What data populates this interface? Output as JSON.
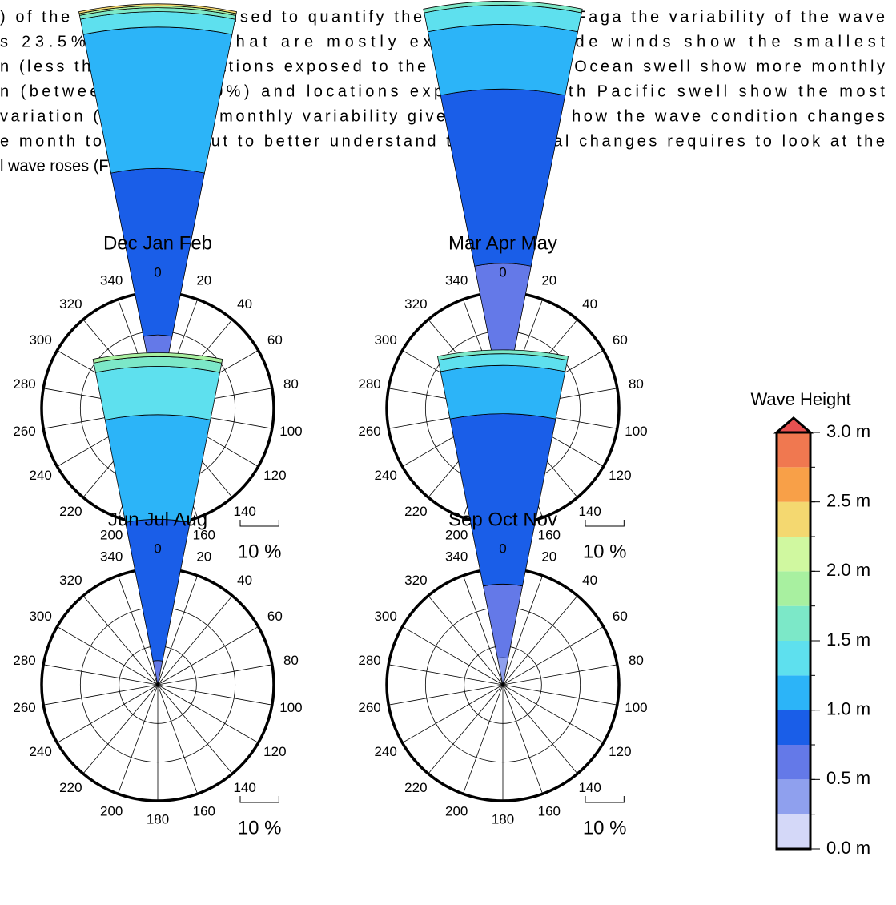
{
  "text_lines": [
    ") of the wave height is used to quantify these changes. In Faga the variability of the wave",
    "s 23.5%. Locations that are mostly exposed to trade winds show the smallest",
    "n (less than 10%), locations exposed to the South Pacific Ocean swell show more monthly",
    "n (between 10 and 20%) and locations exposed to North Pacific swell show the most",
    "variation (>20%). The monthly variability gives an idea of how the wave condition changes",
    "e month to the next but to better understand the seasonal changes requires to look at the",
    "l wave roses (Fig. 5)."
  ],
  "chart_data": [
    {
      "type": "rose",
      "title": "Dec Jan Feb",
      "directions": [
        0,
        20,
        40,
        60,
        80,
        100,
        120,
        140,
        160,
        180,
        200,
        220,
        240,
        260,
        280,
        300,
        320,
        340
      ],
      "rlim": [
        0,
        30
      ],
      "rticks": [
        10,
        20
      ],
      "scale": {
        "value": 10,
        "label": "10 %"
      },
      "direction": 0,
      "segments": [
        {
          "color": "#8fa0ee",
          "value": 5
        },
        {
          "color": "#6479e8",
          "value": 14
        },
        {
          "color": "#1a5ee8",
          "value": 43
        },
        {
          "color": "#2cb4f8",
          "value": 36.5
        },
        {
          "color": "#5ee0ee",
          "value": 4
        },
        {
          "color": "#7ce8c8",
          "value": 1
        },
        {
          "color": "#a8f0a0",
          "value": 0.5
        },
        {
          "color": "#f4d870",
          "value": 0.5
        }
      ]
    },
    {
      "type": "rose",
      "title": "Mar Apr May",
      "directions": [
        0,
        20,
        40,
        60,
        80,
        100,
        120,
        140,
        160,
        180,
        200,
        220,
        240,
        260,
        280,
        300,
        320,
        340
      ],
      "rlim": [
        0,
        30
      ],
      "rticks": [
        10,
        20
      ],
      "scale": {
        "value": 10,
        "label": "10 %"
      },
      "direction": 0,
      "segments": [
        {
          "color": "#6479e8",
          "value": 37.5
        },
        {
          "color": "#1a5ee8",
          "value": 45
        },
        {
          "color": "#2cb4f8",
          "value": 16.7
        },
        {
          "color": "#5ee0ee",
          "value": 5
        },
        {
          "color": "#7ce8c8",
          "value": 1
        }
      ]
    },
    {
      "type": "rose",
      "title": "Jun Jul Aug",
      "directions": [
        0,
        20,
        40,
        60,
        80,
        100,
        120,
        140,
        160,
        180,
        200,
        220,
        240,
        260,
        280,
        300,
        320,
        340
      ],
      "rlim": [
        0,
        30
      ],
      "rticks": [
        10,
        20
      ],
      "scale": {
        "value": 10,
        "label": "10 %"
      },
      "direction": 0,
      "segments": [
        {
          "color": "#6479e8",
          "value": 6.25
        },
        {
          "color": "#1a5ee8",
          "value": 36.5
        },
        {
          "color": "#2cb4f8",
          "value": 27
        },
        {
          "color": "#5ee0ee",
          "value": 12.5
        },
        {
          "color": "#7ce8c8",
          "value": 2.5
        },
        {
          "color": "#a8f0a0",
          "value": 1
        }
      ]
    },
    {
      "type": "rose",
      "title": "Sep Oct Nov",
      "directions": [
        0,
        20,
        40,
        60,
        80,
        100,
        120,
        140,
        160,
        180,
        200,
        220,
        240,
        260,
        280,
        300,
        320,
        340
      ],
      "rlim": [
        0,
        30
      ],
      "rticks": [
        10,
        20
      ],
      "scale": {
        "value": 10,
        "label": "10 %"
      },
      "direction": 0,
      "segments": [
        {
          "color": "#8fa0ee",
          "value": 7
        },
        {
          "color": "#6479e8",
          "value": 19
        },
        {
          "color": "#1a5ee8",
          "value": 44
        },
        {
          "color": "#2cb4f8",
          "value": 12.5
        },
        {
          "color": "#5ee0ee",
          "value": 3
        },
        {
          "color": "#7ce8c8",
          "value": 1
        }
      ]
    },
    {
      "type": "colorbar",
      "title": "Wave Height",
      "bounds": [
        0,
        0.25,
        0.5,
        0.75,
        1,
        1.25,
        1.5,
        1.75,
        2,
        2.25,
        2.5,
        2.75,
        3
      ],
      "colors": [
        "#d4d8f8",
        "#8fa0ee",
        "#6479e8",
        "#1a5ee8",
        "#2cb4f8",
        "#5ee0ee",
        "#7ce8c8",
        "#a8f0a0",
        "#d0f8a0",
        "#f4d870",
        "#f8a048",
        "#f07850"
      ],
      "extend_color": "#e85050",
      "ylim": [
        0,
        3
      ],
      "yticks": [
        {
          "value": 0,
          "label": "0.0 m"
        },
        {
          "value": 0.5,
          "label": "0.5 m"
        },
        {
          "value": 1,
          "label": "1.0 m"
        },
        {
          "value": 1.5,
          "label": "1.5 m"
        },
        {
          "value": 2,
          "label": "2.0 m"
        },
        {
          "value": 2.5,
          "label": "2.5 m"
        },
        {
          "value": 3,
          "label": "3.0 m"
        }
      ]
    }
  ]
}
